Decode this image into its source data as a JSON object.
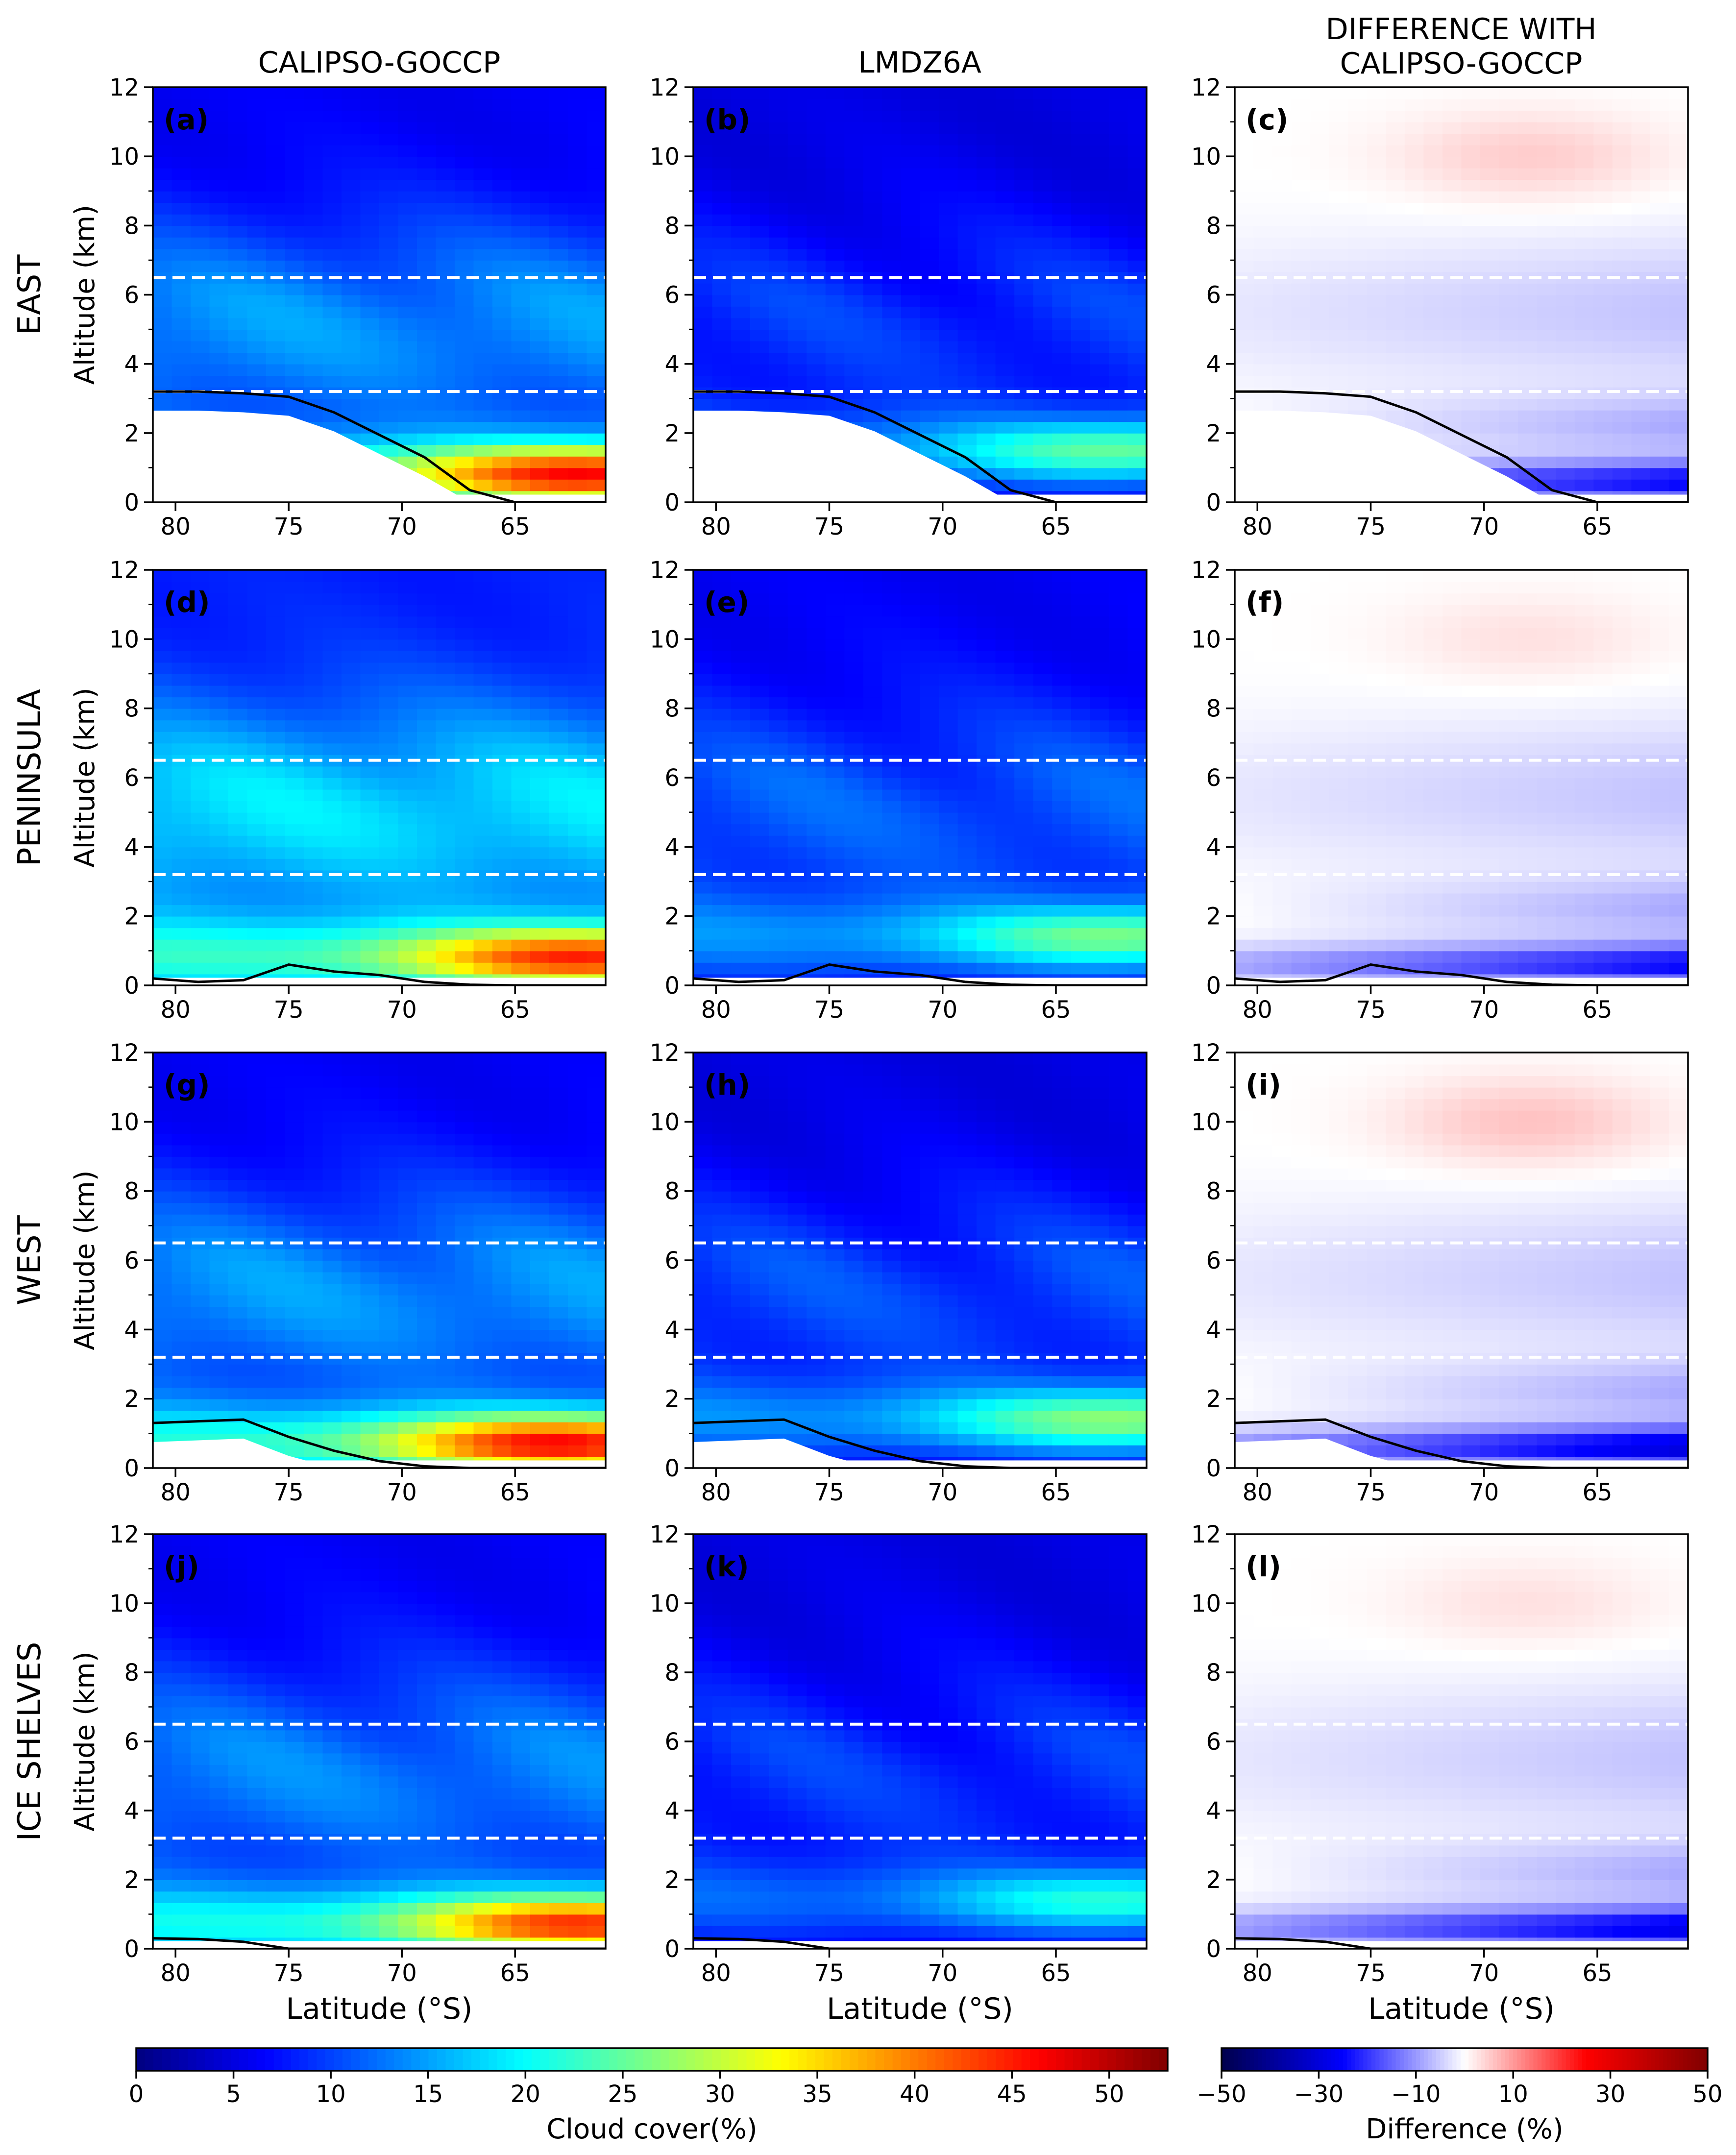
{
  "figure": {
    "column_titles": [
      "CALIPSO-GOCCP",
      "LMDZ6A",
      "DIFFERENCE WITH\nCALIPSO-GOCCP"
    ],
    "row_titles": [
      "EAST",
      "PENINSULA",
      "WEST",
      "ICE SHELVES"
    ],
    "panel_letters": [
      "(a)",
      "(b)",
      "(c)",
      "(d)",
      "(e)",
      "(f)",
      "(g)",
      "(h)",
      "(i)",
      "(j)",
      "(k)",
      "(l)"
    ],
    "ylabel": "Altitude (km)",
    "xlabel": "Latitude (°S)",
    "colorbar_cloud": {
      "label": "Cloud cover(%)",
      "ticks": [
        0,
        5,
        10,
        15,
        20,
        25,
        30,
        35,
        40,
        45,
        50
      ],
      "range": [
        0,
        53
      ],
      "colormap": "jet"
    },
    "colorbar_diff": {
      "label": "Difference (%)",
      "ticks": [
        -50,
        -30,
        -10,
        10,
        30,
        50
      ],
      "tick_labels": [
        "−50",
        "−30",
        "−10",
        "10",
        "30",
        "50"
      ],
      "range": [
        -50,
        50
      ],
      "colormap": "seismic"
    }
  },
  "chart_data": {
    "type": "heatmap",
    "grid": "contour fields, 3 columns x 4 rows",
    "x": {
      "label": "Latitude (°S)",
      "range": [
        81,
        61
      ],
      "ticks": [
        80,
        75,
        70,
        65
      ]
    },
    "y": {
      "label": "Altitude (km)",
      "range": [
        0,
        12
      ],
      "ticks": [
        0,
        2,
        4,
        6,
        8,
        10,
        12
      ]
    },
    "dashed_levels_km": [
      3.2,
      6.5
    ],
    "latitudes": [
      81,
      79,
      77,
      75,
      73,
      71,
      69,
      67,
      65,
      63,
      61
    ],
    "topography_km": {
      "EAST": [
        3.2,
        3.2,
        3.15,
        3.05,
        2.6,
        1.95,
        1.3,
        0.35,
        0.0,
        0.0,
        0.0
      ],
      "PENINSULA": [
        0.2,
        0.1,
        0.15,
        0.6,
        0.4,
        0.3,
        0.1,
        0.02,
        0.0,
        0.0,
        0.0
      ],
      "WEST": [
        1.3,
        1.35,
        1.4,
        0.9,
        0.5,
        0.2,
        0.05,
        0.0,
        0.0,
        0.0,
        0.0
      ],
      "ICE SHELVES": [
        0.3,
        0.28,
        0.2,
        0.0,
        0.0,
        0.0,
        0.0,
        0.0,
        0.0,
        0.0,
        0.0
      ]
    },
    "panels": [
      {
        "id": "(a)",
        "region": "EAST",
        "source": "CALIPSO-GOCCP",
        "units": "%",
        "low_level_max": 53,
        "low_level_max_at": {
          "lat": 62,
          "alt_km": 0.8
        },
        "mid_level": 14,
        "upper_level": 6
      },
      {
        "id": "(b)",
        "region": "EAST",
        "source": "LMDZ6A",
        "units": "%",
        "low_level_max": 28,
        "low_level_max_at": {
          "lat": 62,
          "alt_km": 1.5
        },
        "mid_level": 9,
        "upper_level": 5
      },
      {
        "id": "(c)",
        "region": "EAST",
        "source": "DIFFERENCE WITH CALIPSO-GOCCP",
        "units": "%",
        "low_level_min": -25,
        "upper_level_max": 5
      },
      {
        "id": "(d)",
        "region": "PENINSULA",
        "source": "CALIPSO-GOCCP",
        "units": "%",
        "low_level_max": 53,
        "low_level_max_at": {
          "lat": 62,
          "alt_km": 0.8
        },
        "mid_level": 18,
        "upper_level": 8
      },
      {
        "id": "(e)",
        "region": "PENINSULA",
        "source": "LMDZ6A",
        "units": "%",
        "low_level_max": 30,
        "low_level_max_at": {
          "lat": 62,
          "alt_km": 1.4
        },
        "mid_level": 11,
        "upper_level": 6
      },
      {
        "id": "(f)",
        "region": "PENINSULA",
        "source": "DIFFERENCE WITH CALIPSO-GOCCP",
        "units": "%",
        "low_level_min": -25,
        "upper_level_max": 3
      },
      {
        "id": "(g)",
        "region": "WEST",
        "source": "CALIPSO-GOCCP",
        "units": "%",
        "low_level_max": 53,
        "low_level_max_at": {
          "lat": 63,
          "alt_km": 0.7
        },
        "mid_level": 14,
        "upper_level": 6
      },
      {
        "id": "(h)",
        "region": "WEST",
        "source": "LMDZ6A",
        "units": "%",
        "low_level_max": 31,
        "low_level_max_at": {
          "lat": 62,
          "alt_km": 1.4
        },
        "mid_level": 10,
        "upper_level": 5
      },
      {
        "id": "(i)",
        "region": "WEST",
        "source": "DIFFERENCE WITH CALIPSO-GOCCP",
        "units": "%",
        "low_level_min": -30,
        "upper_level_max": 6
      },
      {
        "id": "(j)",
        "region": "ICE SHELVES",
        "source": "CALIPSO-GOCCP",
        "units": "%",
        "low_level_max": 50,
        "low_level_max_at": {
          "lat": 62,
          "alt_km": 0.7
        },
        "mid_level": 13,
        "upper_level": 6
      },
      {
        "id": "(k)",
        "region": "ICE SHELVES",
        "source": "LMDZ6A",
        "units": "%",
        "low_level_max": 25,
        "low_level_max_at": {
          "lat": 62,
          "alt_km": 1.4
        },
        "mid_level": 9,
        "upper_level": 5
      },
      {
        "id": "(l)",
        "region": "ICE SHELVES",
        "source": "DIFFERENCE WITH CALIPSO-GOCCP",
        "units": "%",
        "low_level_min": -28,
        "upper_level_max": 3
      }
    ]
  }
}
